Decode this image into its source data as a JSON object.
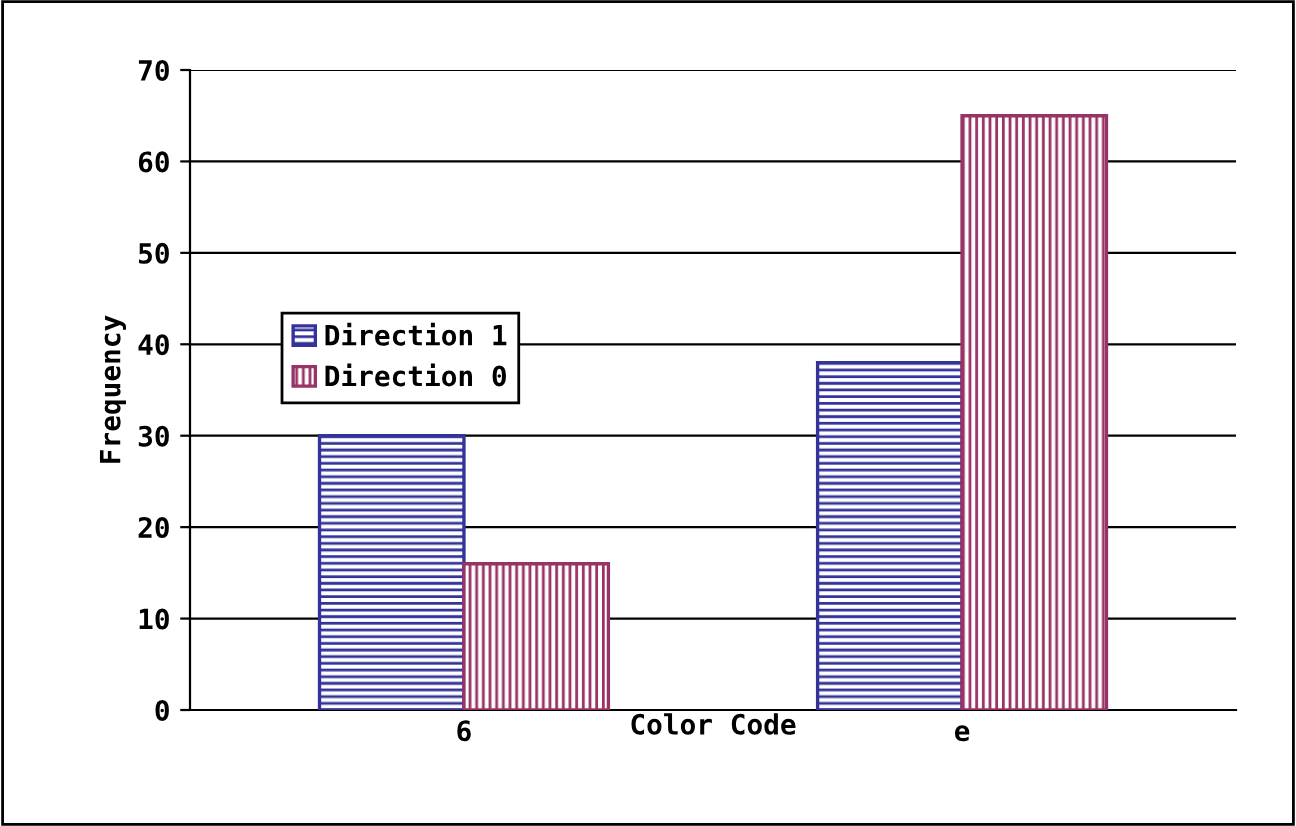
{
  "chart_data": {
    "type": "bar",
    "xlabel": "Color Code",
    "ylabel": "Frequency",
    "categories": [
      "6",
      "e"
    ],
    "series": [
      {
        "name": "Direction 1",
        "color": "#333399",
        "values": [
          30,
          38
        ]
      },
      {
        "name": "Direction 0",
        "color": "#993366",
        "values": [
          16,
          65
        ]
      }
    ],
    "ylim": [
      0,
      70
    ],
    "yticks": [
      0,
      10,
      20,
      30,
      40,
      50,
      60,
      70
    ],
    "grid": "y",
    "legend": "left"
  }
}
